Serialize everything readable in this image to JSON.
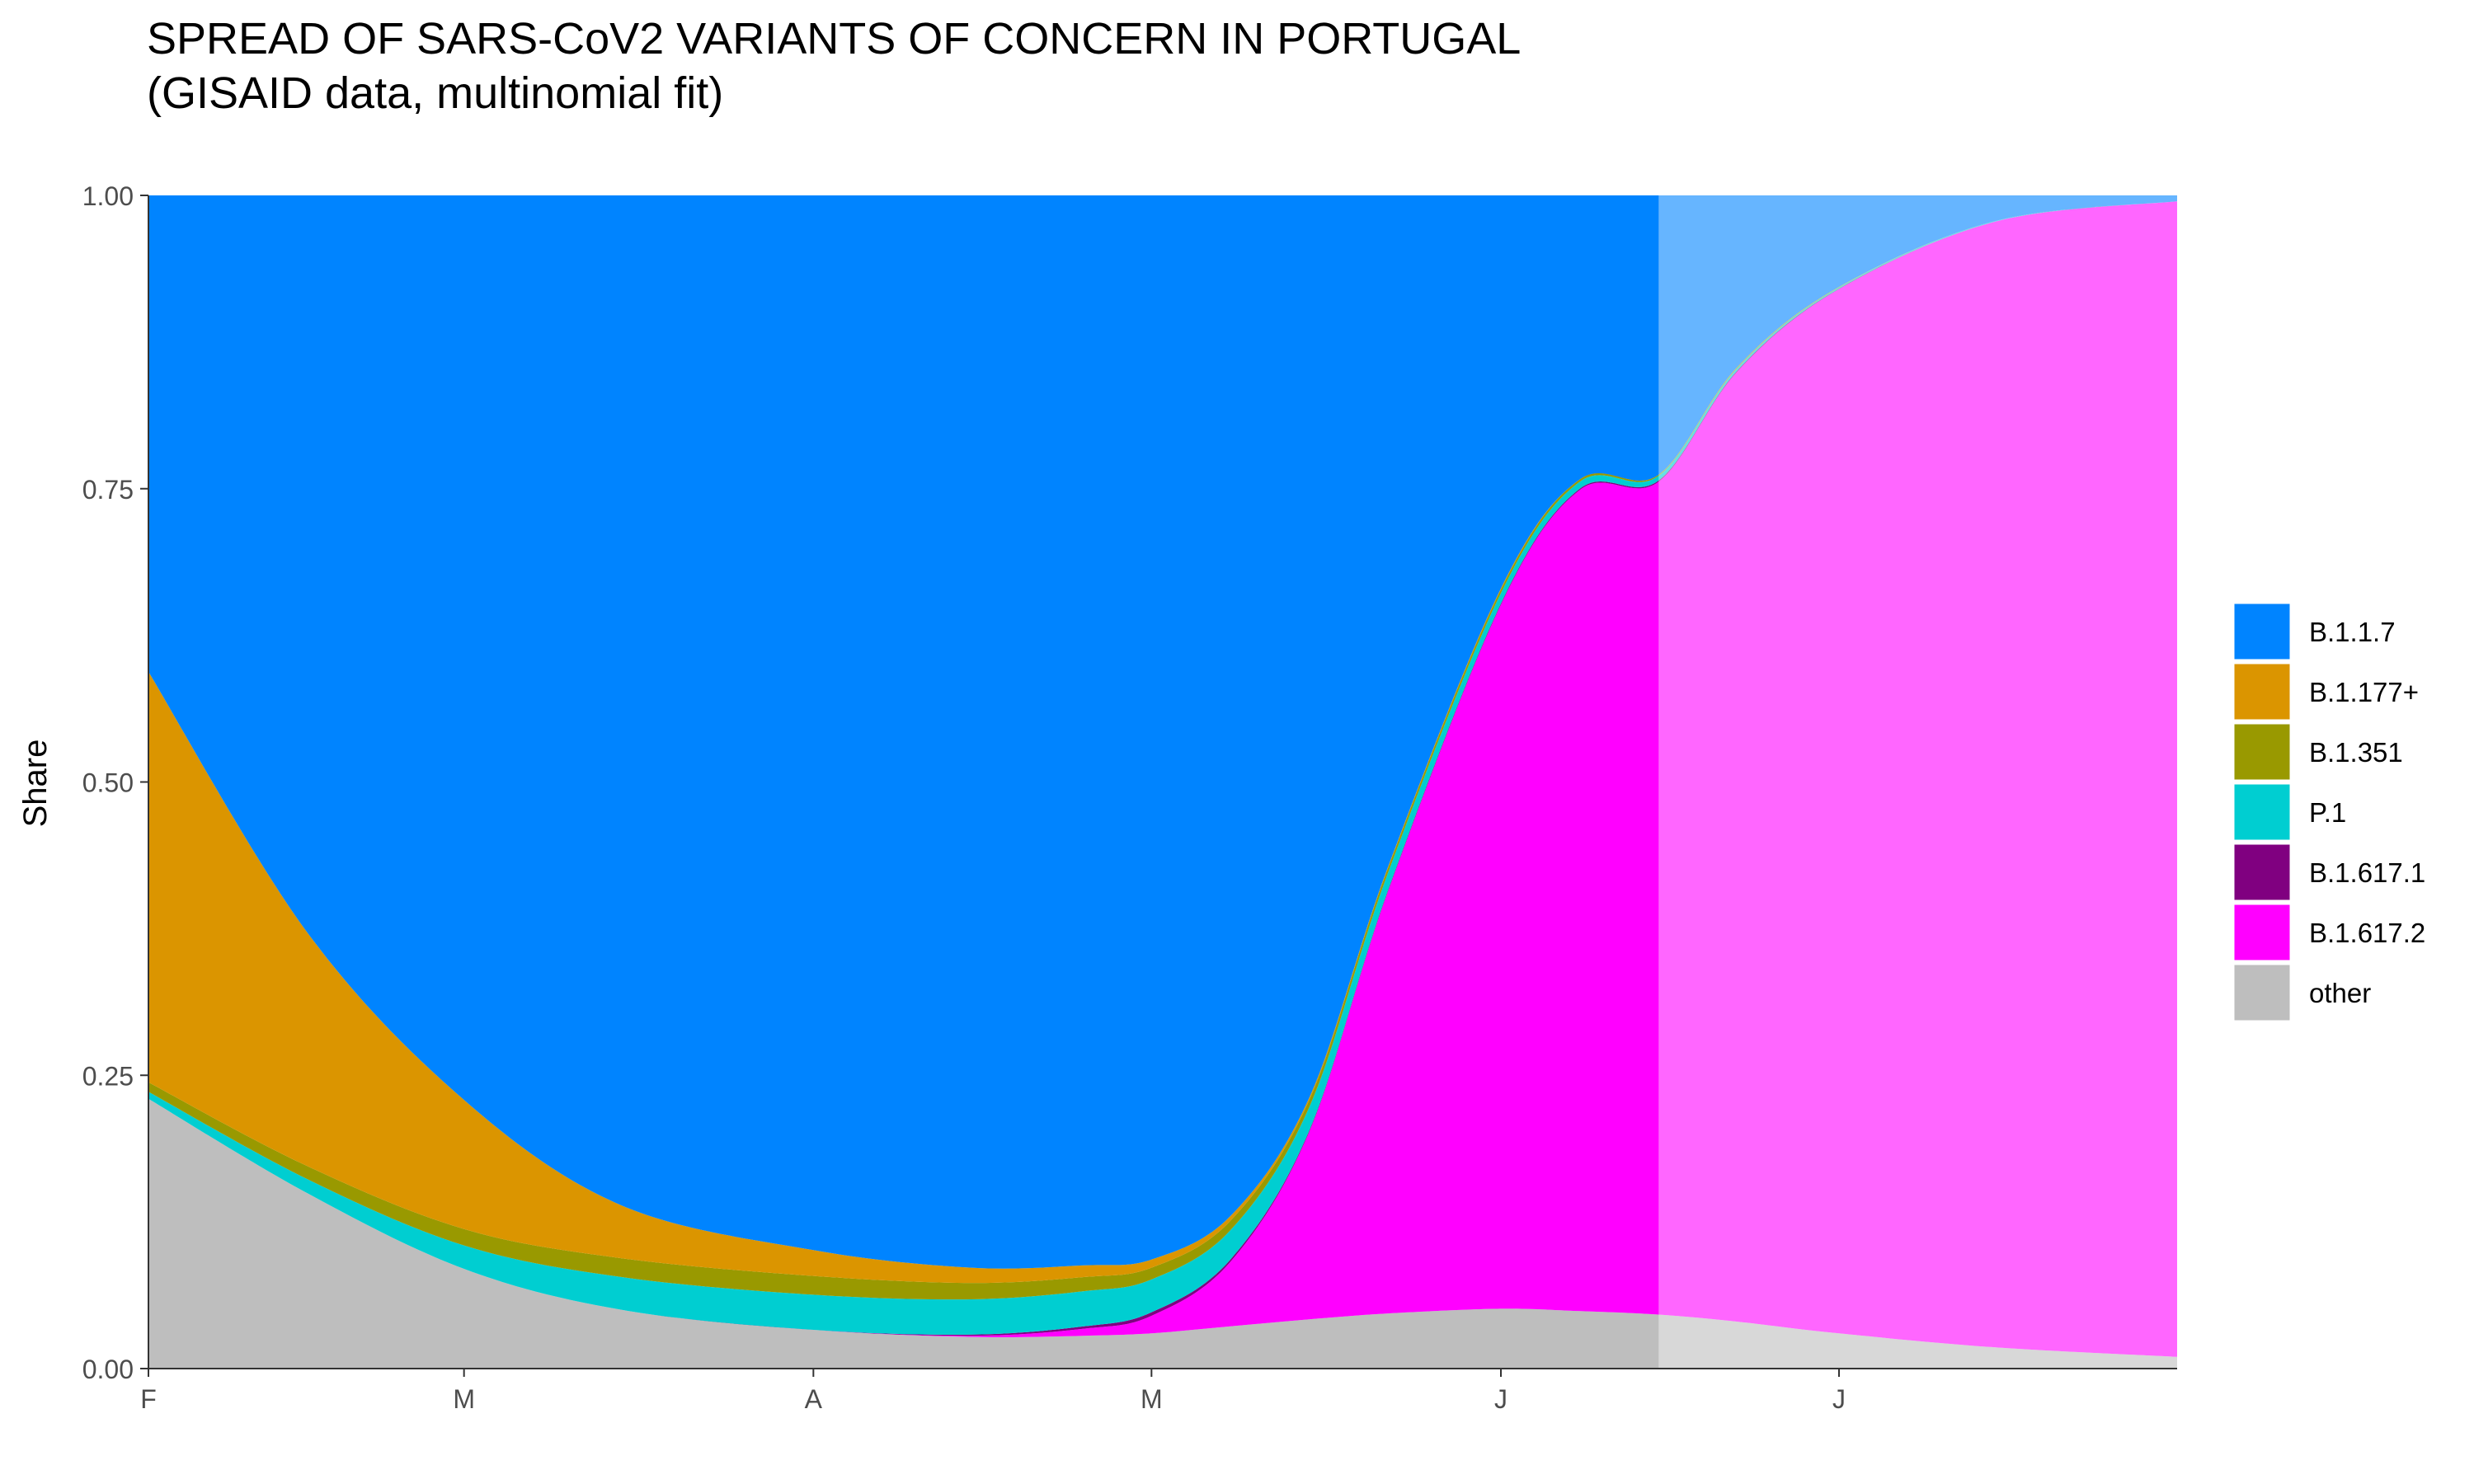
{
  "title_line1": "SPREAD OF SARS-CoV2 VARIANTS OF CONCERN IN PORTUGAL",
  "title_line2": "(GISAID data, multinomial fit)",
  "chart_data": {
    "type": "area",
    "stacked": true,
    "normalized": true,
    "ylabel": "Share",
    "xlabel": "",
    "ylim": [
      0,
      1
    ],
    "yticks": [
      "0.00",
      "0.25",
      "0.50",
      "0.75",
      "1.00"
    ],
    "xlim": [
      "2021-02-01",
      "2021-07-31"
    ],
    "xticks": [
      {
        "date": "2021-02-01",
        "label": "F"
      },
      {
        "date": "2021-03-01",
        "label": "M"
      },
      {
        "date": "2021-04-01",
        "label": "A"
      },
      {
        "date": "2021-05-01",
        "label": "M"
      },
      {
        "date": "2021-06-01",
        "label": "J"
      },
      {
        "date": "2021-07-01",
        "label": "J"
      }
    ],
    "fit_end_date": "2021-06-15",
    "grid": false,
    "legend_position": "right",
    "x": [
      "2021-02-01",
      "2021-02-15",
      "2021-03-01",
      "2021-03-15",
      "2021-04-01",
      "2021-04-15",
      "2021-04-25",
      "2021-05-01",
      "2021-05-08",
      "2021-05-15",
      "2021-05-22",
      "2021-06-01",
      "2021-06-08",
      "2021-06-15",
      "2021-06-22",
      "2021-07-01",
      "2021-07-15",
      "2021-07-31"
    ],
    "series": [
      {
        "name": "other",
        "color": "#BEBEBE",
        "values": [
          0.23,
          0.15,
          0.085,
          0.05,
          0.033,
          0.027,
          0.028,
          0.03,
          0.036,
          0.042,
          0.047,
          0.051,
          0.049,
          0.046,
          0.04,
          0.03,
          0.018,
          0.01
        ]
      },
      {
        "name": "B.1.617.2",
        "color": "#FF00FF",
        "values": [
          0,
          0,
          0,
          0,
          0,
          0.001,
          0.006,
          0.015,
          0.055,
          0.16,
          0.36,
          0.6,
          0.7,
          0.71,
          0.81,
          0.89,
          0.96,
          0.985
        ]
      },
      {
        "name": "B.1.617.1",
        "color": "#800080",
        "values": [
          0,
          0,
          0,
          0,
          0,
          0.001,
          0.002,
          0.003,
          0.002,
          0.001,
          0.001,
          0.001,
          0.001,
          0.001,
          0.001,
          0.0005,
          0,
          0
        ]
      },
      {
        "name": "P.1",
        "color": "#00CED1",
        "values": [
          0.006,
          0.012,
          0.02,
          0.028,
          0.03,
          0.03,
          0.03,
          0.028,
          0.025,
          0.02,
          0.015,
          0.009,
          0.006,
          0.004,
          0.002,
          0.001,
          0.0005,
          0
        ]
      },
      {
        "name": "B.1.351",
        "color": "#999900",
        "values": [
          0.008,
          0.011,
          0.014,
          0.016,
          0.016,
          0.014,
          0.012,
          0.01,
          0.008,
          0.006,
          0.004,
          0.003,
          0.002,
          0.001,
          0.001,
          0.0005,
          0,
          0
        ]
      },
      {
        "name": "B.1.177+",
        "color": "#DB9500",
        "values": [
          0.35,
          0.2,
          0.11,
          0.045,
          0.022,
          0.013,
          0.01,
          0.007,
          0.004,
          0.002,
          0.001,
          0.001,
          0,
          0,
          0,
          0,
          0,
          0
        ]
      },
      {
        "name": "B.1.1.7",
        "color": "#0084FF",
        "values": [
          0.406,
          0.627,
          0.771,
          0.861,
          0.899,
          0.914,
          0.912,
          0.907,
          0.87,
          0.769,
          0.572,
          0.335,
          0.242,
          0.238,
          0.146,
          0.078,
          0.0215,
          0.005
        ]
      }
    ],
    "legend_order": [
      "B.1.1.7",
      "B.1.177+",
      "B.1.351",
      "P.1",
      "B.1.617.1",
      "B.1.617.2",
      "other"
    ]
  }
}
